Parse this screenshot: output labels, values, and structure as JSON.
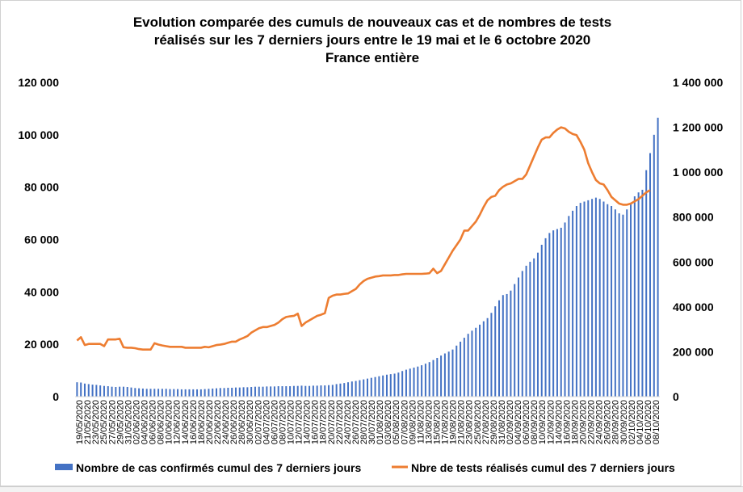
{
  "chart_data": {
    "type": "bar+line",
    "title": [
      "Evolution comparée des cumuls de nouveaux cas et de nombres de tests",
      "réalisés sur les 7 derniers jours entre le 19 mai et le 6 octobre 2020",
      "France entière"
    ],
    "y_left": {
      "range": [
        0,
        120000
      ],
      "ticks": [
        0,
        20000,
        40000,
        60000,
        80000,
        100000,
        120000
      ],
      "tick_labels": [
        "0",
        "20 000",
        "40 000",
        "60 000",
        "80 000",
        "100 000",
        "120 000"
      ]
    },
    "y_right": {
      "range": [
        0,
        1400000
      ],
      "ticks": [
        0,
        200000,
        400000,
        600000,
        800000,
        1000000,
        1200000,
        1400000
      ],
      "tick_labels": [
        "0",
        "200 000",
        "400 000",
        "600 000",
        "800 000",
        "1 000 000",
        "1 200 000",
        "1 400 000"
      ]
    },
    "x_tick_labels": [
      "19/05/2020",
      "21/05/2020",
      "23/05/2020",
      "25/05/2020",
      "27/05/2020",
      "29/05/2020",
      "31/05/2020",
      "02/06/2020",
      "04/06/2020",
      "06/06/2020",
      "08/06/2020",
      "10/06/2020",
      "12/06/2020",
      "14/06/2020",
      "16/06/2020",
      "18/06/2020",
      "20/06/2020",
      "22/06/2020",
      "24/06/2020",
      "26/06/2020",
      "28/06/2020",
      "30/06/2020",
      "02/07/2020",
      "04/07/2020",
      "06/07/2020",
      "08/07/2020",
      "10/07/2020",
      "12/07/2020",
      "14/07/2020",
      "16/07/2020",
      "18/07/2020",
      "20/07/2020",
      "22/07/2020",
      "24/07/2020",
      "26/07/2020",
      "28/07/2020",
      "30/07/2020",
      "01/08/2020",
      "03/08/2020",
      "05/08/2020",
      "07/08/2020",
      "09/08/2020",
      "11/08/2020",
      "13/08/2020",
      "15/08/2020",
      "17/08/2020",
      "19/08/2020",
      "21/08/2020",
      "23/08/2020",
      "25/08/2020",
      "27/08/2020",
      "29/08/2020",
      "31/08/2020",
      "02/09/2020",
      "04/09/2020",
      "06/09/2020",
      "08/09/2020",
      "10/09/2020",
      "12/09/2020",
      "14/09/2020",
      "16/09/2020",
      "18/09/2020",
      "20/09/2020",
      "22/09/2020",
      "24/09/2020",
      "26/09/2020",
      "28/09/2020",
      "30/09/2020",
      "02/10/2020",
      "04/10/2020",
      "06/10/2020",
      "08/10/2020"
    ],
    "legend_position": "bottom",
    "series": [
      {
        "name": "Nombre de cas confirmés cumul des 7 derniers jours",
        "type": "bar",
        "axis": "left",
        "color": "#4472c4",
        "values": [
          5500,
          5400,
          5000,
          4800,
          4600,
          4500,
          4300,
          4100,
          4000,
          3800,
          3700,
          3800,
          3800,
          3700,
          3500,
          3300,
          3200,
          3100,
          3000,
          3000,
          3000,
          3000,
          3000,
          3000,
          2900,
          2900,
          2900,
          2800,
          2800,
          2800,
          2800,
          2800,
          2800,
          2900,
          3000,
          3100,
          3200,
          3300,
          3300,
          3400,
          3400,
          3500,
          3500,
          3600,
          3600,
          3700,
          3800,
          3800,
          3800,
          3900,
          3900,
          3900,
          4000,
          4000,
          4000,
          4000,
          4100,
          4100,
          4200,
          4100,
          4100,
          4200,
          4200,
          4300,
          4300,
          4400,
          4500,
          4800,
          5000,
          5200,
          5500,
          5800,
          6000,
          6300,
          6600,
          6900,
          7200,
          7500,
          7800,
          8100,
          8400,
          8600,
          8800,
          9200,
          9800,
          10300,
          10700,
          11100,
          11500,
          12000,
          12600,
          13200,
          14000,
          14800,
          15700,
          16500,
          17200,
          18000,
          19500,
          21000,
          22500,
          24000,
          25200,
          26300,
          27500,
          28800,
          30000,
          32000,
          34500,
          36800,
          38800,
          39200,
          40500,
          43000,
          45500,
          48000,
          50000,
          51500,
          52800,
          55000,
          58000,
          60500,
          62500,
          63500,
          64000,
          64500,
          66500,
          69000,
          71000,
          72800,
          74000,
          74500,
          75000,
          75500,
          76000,
          75500,
          74500,
          73500,
          72800,
          71500,
          70000,
          69500,
          71500,
          74000,
          76500,
          78000,
          79000,
          86500,
          93000,
          100000,
          106500
        ]
      },
      {
        "name": "Nbre de tests réalisés cumul des 7 derniers jours",
        "type": "line",
        "axis": "right",
        "color": "#ed7d31",
        "values": [
          250000,
          265000,
          230000,
          235000,
          235000,
          235000,
          235000,
          225000,
          255000,
          255000,
          255000,
          258000,
          220000,
          218000,
          218000,
          216000,
          212000,
          210000,
          210000,
          210000,
          238000,
          232000,
          228000,
          225000,
          222000,
          222000,
          222000,
          222000,
          218000,
          218000,
          218000,
          218000,
          218000,
          222000,
          220000,
          225000,
          230000,
          232000,
          235000,
          240000,
          245000,
          245000,
          255000,
          262000,
          270000,
          285000,
          295000,
          305000,
          310000,
          310000,
          315000,
          320000,
          330000,
          345000,
          355000,
          358000,
          360000,
          370000,
          315000,
          330000,
          340000,
          350000,
          360000,
          365000,
          372000,
          440000,
          450000,
          455000,
          455000,
          458000,
          460000,
          470000,
          480000,
          500000,
          515000,
          525000,
          530000,
          535000,
          537000,
          540000,
          540000,
          540000,
          542000,
          542000,
          545000,
          547000,
          547000,
          547000,
          547000,
          547000,
          548000,
          550000,
          570000,
          550000,
          560000,
          590000,
          620000,
          650000,
          675000,
          700000,
          740000,
          740000,
          760000,
          780000,
          810000,
          845000,
          875000,
          890000,
          895000,
          920000,
          935000,
          945000,
          950000,
          960000,
          970000,
          970000,
          990000,
          1030000,
          1070000,
          1110000,
          1145000,
          1155000,
          1155000,
          1175000,
          1190000,
          1200000,
          1195000,
          1180000,
          1170000,
          1165000,
          1135000,
          1100000,
          1040000,
          1000000,
          965000,
          950000,
          945000,
          920000,
          890000,
          875000,
          860000,
          855000,
          855000,
          860000,
          870000,
          880000,
          895000,
          910000,
          920000
        ]
      }
    ]
  }
}
